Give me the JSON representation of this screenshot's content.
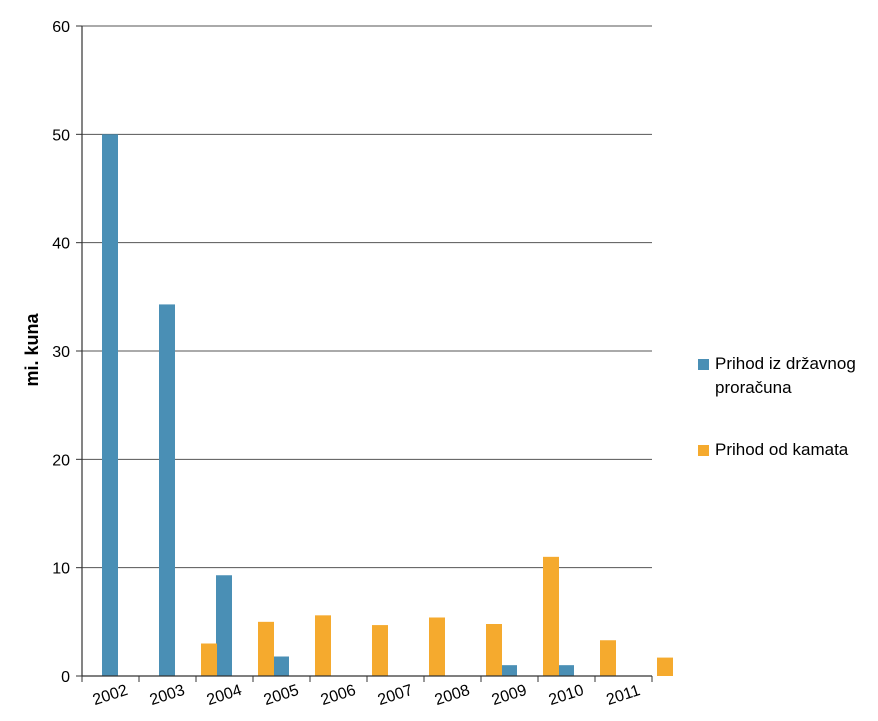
{
  "chart_data": {
    "type": "bar",
    "ylabel": "mi. kuna",
    "xlabel": "",
    "ylim": [
      0,
      60
    ],
    "yticks": [
      0,
      10,
      20,
      30,
      40,
      50,
      60
    ],
    "grid": true,
    "legend_position": "right",
    "categories": [
      "2002",
      "2003",
      "2004",
      "2005",
      "2006",
      "2007",
      "2008",
      "2009",
      "2010",
      "2011"
    ],
    "series": [
      {
        "name": "Prihod iz državnog proračuna",
        "color": "#4a8fb5",
        "values": [
          50.0,
          34.3,
          9.3,
          1.8,
          0,
          0,
          0,
          1.0,
          1.0,
          0
        ]
      },
      {
        "name": "Prihod od kamata",
        "color": "#f5aa2e",
        "values": [
          0,
          3.0,
          5.0,
          5.6,
          4.7,
          5.4,
          4.8,
          11.0,
          3.3,
          1.7
        ]
      }
    ]
  }
}
